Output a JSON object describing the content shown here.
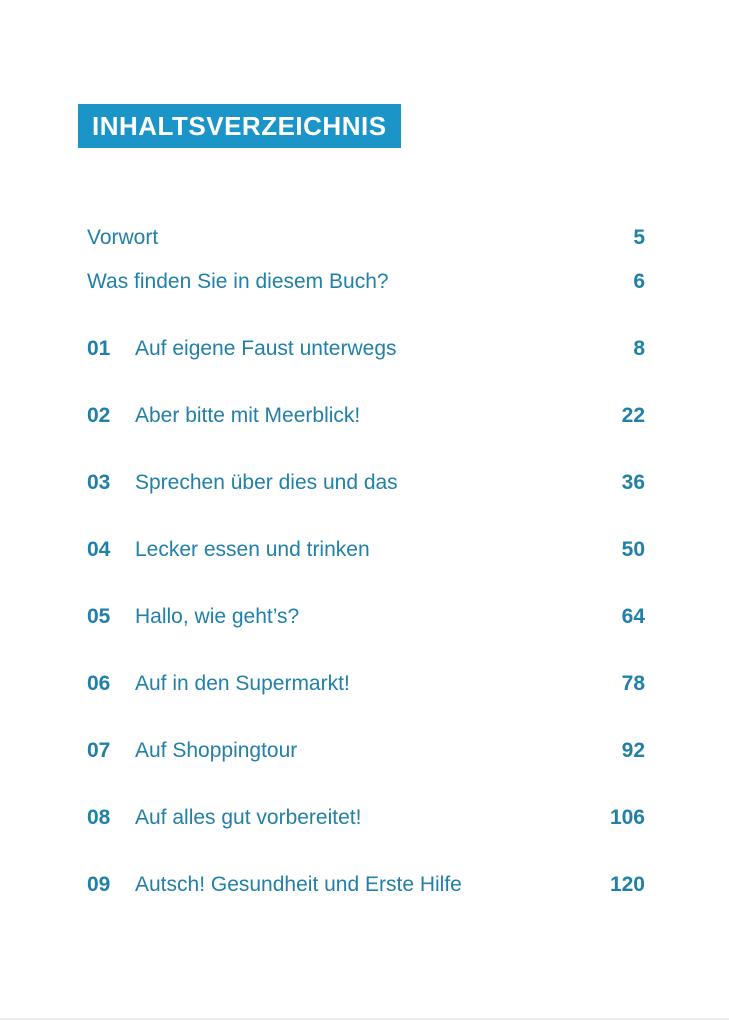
{
  "colors": {
    "banner_bg": "#1b94c7",
    "banner_fg": "#ffffff",
    "text": "#2080a8"
  },
  "banner": {
    "label": "INHALTSVERZEICHNIS"
  },
  "toc": {
    "front_matter": [
      {
        "title": "Vorwort",
        "page": "5"
      },
      {
        "title": "Was finden Sie in diesem Buch?",
        "page": "6"
      }
    ],
    "chapters": [
      {
        "number": "01",
        "title": "Auf eigene Faust unterwegs",
        "page": "8"
      },
      {
        "number": "02",
        "title": "Aber bitte mit Meerblick!",
        "page": "22"
      },
      {
        "number": "03",
        "title": "Sprechen über dies und das",
        "page": "36"
      },
      {
        "number": "04",
        "title": "Lecker essen und trinken",
        "page": "50"
      },
      {
        "number": "05",
        "title": "Hallo, wie geht’s?",
        "page": "64"
      },
      {
        "number": "06",
        "title": "Auf in den Supermarkt!",
        "page": "78"
      },
      {
        "number": "07",
        "title": "Auf Shoppingtour",
        "page": "92"
      },
      {
        "number": "08",
        "title": "Auf alles gut vorbereitet!",
        "page": "106"
      },
      {
        "number": "09",
        "title": "Autsch! Gesundheit und Erste Hilfe",
        "page": "120"
      }
    ]
  }
}
